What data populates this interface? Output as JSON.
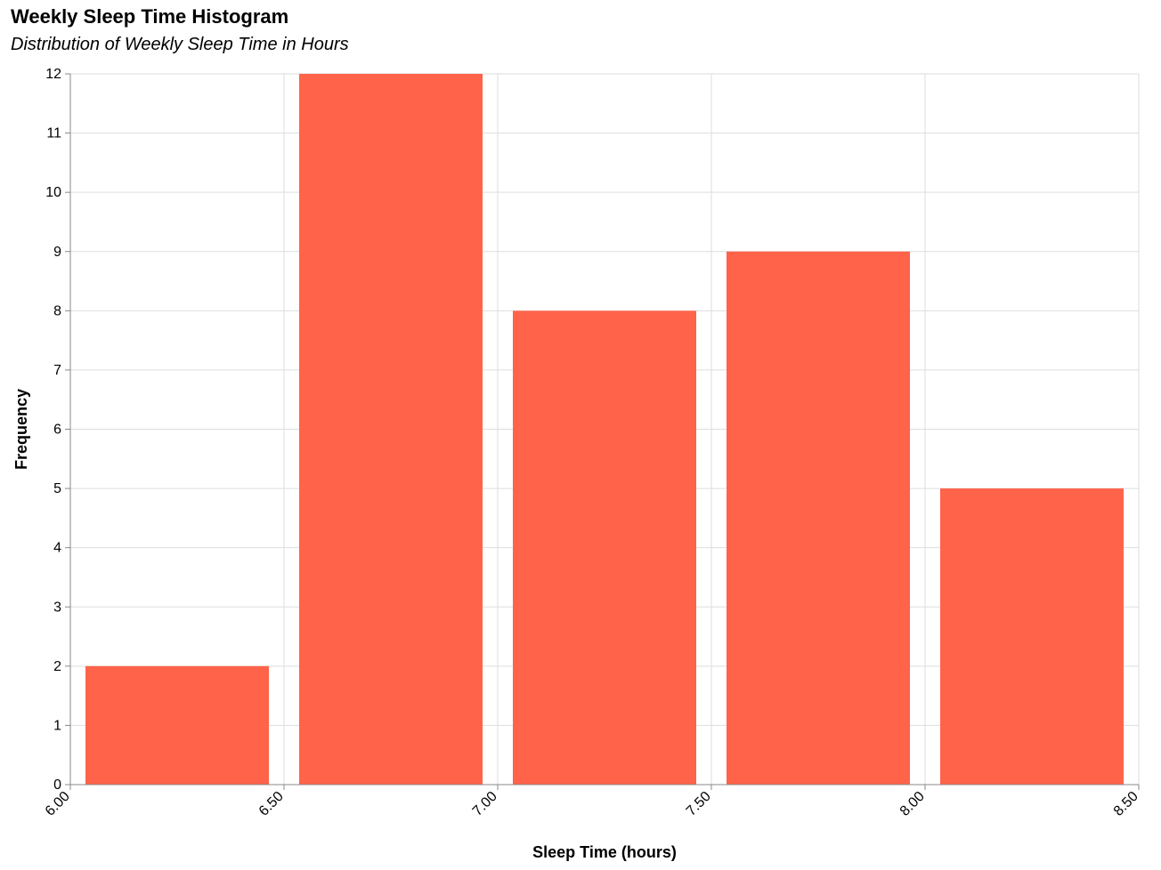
{
  "chart_data": {
    "type": "bar",
    "title": "Weekly Sleep Time Histogram",
    "subtitle": "Distribution of Weekly Sleep Time in Hours",
    "xlabel": "Sleep Time (hours)",
    "ylabel": "Frequency",
    "bins": [
      {
        "start": 6.0,
        "end": 6.5,
        "count": 2
      },
      {
        "start": 6.5,
        "end": 7.0,
        "count": 12
      },
      {
        "start": 7.0,
        "end": 7.5,
        "count": 8
      },
      {
        "start": 7.5,
        "end": 8.0,
        "count": 9
      },
      {
        "start": 8.0,
        "end": 8.5,
        "count": 5
      }
    ],
    "xlim": [
      6.0,
      8.5
    ],
    "ylim": [
      0,
      12
    ],
    "x_ticks": [
      "6.00",
      "6.50",
      "7.00",
      "7.50",
      "8.00",
      "8.50"
    ],
    "y_ticks": [
      0,
      1,
      2,
      3,
      4,
      5,
      6,
      7,
      8,
      9,
      10,
      11,
      12
    ],
    "bar_color": "#ff634a",
    "grid": true
  }
}
